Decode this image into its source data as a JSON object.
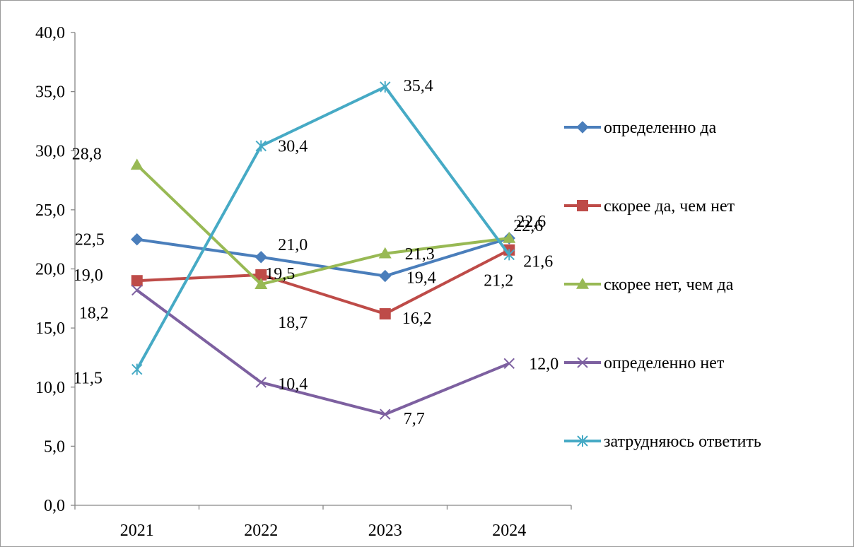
{
  "chart_data": {
    "type": "line",
    "categories": [
      "2021",
      "2022",
      "2023",
      "2024"
    ],
    "ylim": [
      0,
      40
    ],
    "yticks": [
      "0,0",
      "5,0",
      "10,0",
      "15,0",
      "20,0",
      "25,0",
      "30,0",
      "35,0",
      "40,0"
    ],
    "grid": false,
    "legend_position": "right",
    "series": [
      {
        "name": "определенно да",
        "color": "#4A7EBB",
        "marker": "diamond-icon",
        "values": [
          22.5,
          21.0,
          19.4,
          22.6
        ],
        "labels": [
          "22,5",
          "21,0",
          "19,4",
          "22,6"
        ]
      },
      {
        "name": "скорее да, чем нет",
        "color": "#BE4B48",
        "marker": "square-icon",
        "values": [
          19.0,
          19.5,
          16.2,
          21.6
        ],
        "labels": [
          "19,0",
          "19,5",
          "16,2",
          "21,6"
        ]
      },
      {
        "name": "скорее нет, чем да",
        "color": "#98B954",
        "marker": "triangle-icon",
        "values": [
          28.8,
          18.7,
          21.3,
          22.6
        ],
        "labels": [
          "28,8",
          "18,7",
          "21,3",
          "22,6"
        ]
      },
      {
        "name": "определенно нет",
        "color": "#7D60A0",
        "marker": "x-icon",
        "values": [
          18.2,
          10.4,
          7.7,
          12.0
        ],
        "labels": [
          "18,2",
          "10,4",
          "7,7",
          "12,0"
        ]
      },
      {
        "name": "затрудняюсь ответить",
        "color": "#46AAC5",
        "marker": "asterisk-icon",
        "values": [
          11.5,
          30.4,
          35.4,
          21.2
        ],
        "labels": [
          "11,5",
          "30,4",
          "35,4",
          "21,2"
        ]
      }
    ]
  }
}
